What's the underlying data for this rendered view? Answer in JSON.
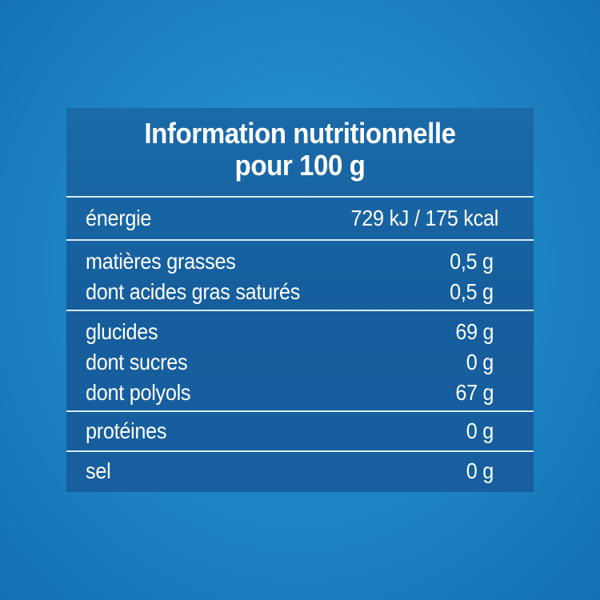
{
  "panel": {
    "title_line1": "Information nutritionnelle",
    "title_line2": "pour 100 g"
  },
  "rows": {
    "energy": {
      "label": "énergie",
      "value": "729 kJ / 175 kcal"
    },
    "fat": {
      "label": "matières grasses",
      "value": "0,5 g"
    },
    "saturates": {
      "label": "dont acides gras saturés",
      "value": "0,5 g"
    },
    "carbs": {
      "label": "glucides",
      "value": "69 g"
    },
    "sugars": {
      "label": "dont sucres",
      "value": "0 g"
    },
    "polyols": {
      "label": "dont polyols",
      "value": "67 g"
    },
    "protein": {
      "label": "protéines",
      "value": "0 g"
    },
    "salt": {
      "label": "sel",
      "value": "0 g"
    }
  },
  "colors": {
    "background": "#1f87c6",
    "panel": "#155d9c",
    "text": "#ffffff",
    "separator": "#d8e8f3"
  }
}
